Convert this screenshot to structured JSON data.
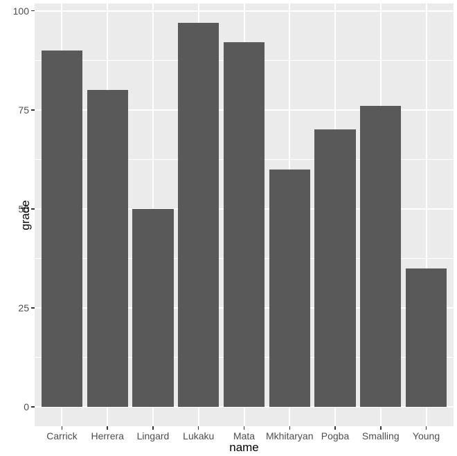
{
  "chart_data": {
    "type": "bar",
    "title": "",
    "xlabel": "name",
    "ylabel": "grade",
    "categories": [
      "Carrick",
      "Herrera",
      "Lingard",
      "Lukaku",
      "Mata",
      "Mkhitaryan",
      "Pogba",
      "Smalling",
      "Young"
    ],
    "values": [
      90,
      80,
      50,
      97,
      92,
      60,
      70,
      76,
      35
    ],
    "y_ticks": [
      0,
      25,
      50,
      75,
      100
    ],
    "y_minor_ticks": [
      12.5,
      37.5,
      62.5,
      87.5
    ],
    "ylim": [
      0,
      100
    ],
    "grid": "on",
    "legend_position": "none",
    "colors": {
      "bar_fill": "#595959",
      "panel_background": "#EBEBEB",
      "major_gridline": "#FFFFFF",
      "minor_gridline": "#FFFFFF",
      "tick_mark": "#333333",
      "tick_label_text": "#4D4D4D",
      "axis_title_text": "#000000",
      "figure_background": "#FFFFFF"
    }
  }
}
